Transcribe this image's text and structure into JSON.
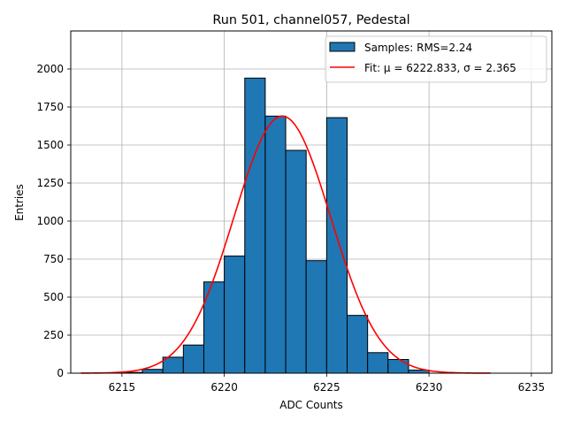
{
  "chart_data": {
    "type": "bar",
    "title": "Run 501, channel057, Pedestal",
    "xlabel": "ADC Counts",
    "ylabel": "Entries",
    "xlim": [
      6212.5,
      6236.0
    ],
    "ylim": [
      0,
      2250
    ],
    "xticks": [
      6215,
      6220,
      6225,
      6230,
      6235
    ],
    "yticks": [
      0,
      250,
      500,
      750,
      1000,
      1250,
      1500,
      1750,
      2000
    ],
    "grid": true,
    "bin_width": 1,
    "bins": [
      {
        "left": 6215,
        "count": 5
      },
      {
        "left": 6216,
        "count": 25
      },
      {
        "left": 6217,
        "count": 105
      },
      {
        "left": 6218,
        "count": 185
      },
      {
        "left": 6219,
        "count": 600
      },
      {
        "left": 6220,
        "count": 770
      },
      {
        "left": 6221,
        "count": 1940
      },
      {
        "left": 6222,
        "count": 1690
      },
      {
        "left": 6223,
        "count": 1465
      },
      {
        "left": 6224,
        "count": 740
      },
      {
        "left": 6225,
        "count": 1680
      },
      {
        "left": 6226,
        "count": 380
      },
      {
        "left": 6227,
        "count": 135
      },
      {
        "left": 6228,
        "count": 90
      },
      {
        "left": 6229,
        "count": 20
      }
    ],
    "fit": {
      "mu": 6222.833,
      "sigma": 2.365,
      "amplitude": 1690,
      "x_range": [
        6213,
        6233
      ]
    },
    "legend": {
      "position": "top-right",
      "entries": [
        {
          "label": "Samples: RMS=2.24",
          "kind": "patch"
        },
        {
          "label": "Fit: μ = 6222.833, σ = 2.365",
          "kind": "line"
        }
      ]
    },
    "colors": {
      "bar_fill": "#1f77b4",
      "bar_edge": "#000000",
      "fit_line": "#ff0000",
      "grid": "#b0b0b0"
    }
  }
}
